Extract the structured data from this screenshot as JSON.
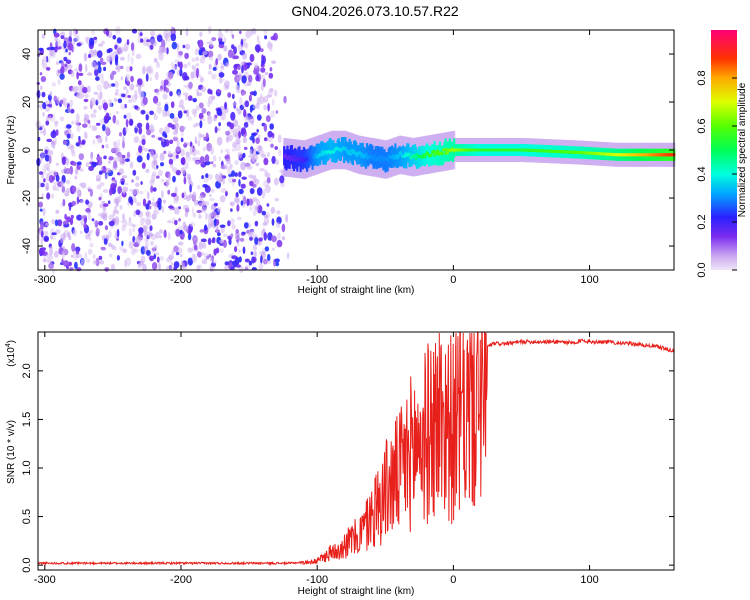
{
  "title": "GN04.2026.073.10.57.R22",
  "chart_data": [
    {
      "type": "heatmap",
      "xlabel": "Height of straight line (km)",
      "ylabel": "Frequency (Hz)",
      "xlim": [
        -305,
        162
      ],
      "ylim": [
        -50,
        50
      ],
      "xticks": [
        -300,
        -200,
        -100,
        0,
        100
      ],
      "xtick_labels": [
        "-300",
        "-200",
        "-100",
        "0",
        "100"
      ],
      "yticks": [
        -40,
        -20,
        0,
        20,
        40
      ],
      "ytick_labels": [
        "-40",
        "-20",
        "0",
        "20",
        "40"
      ],
      "colorbar": {
        "label": "Normalized spectral amplitude",
        "range": [
          0,
          1
        ],
        "ticks": [
          0.0,
          0.2,
          0.4,
          0.6,
          0.8
        ],
        "tick_labels": [
          "0.0",
          "0.2",
          "0.4",
          "0.6",
          "0.8"
        ]
      },
      "ridge": {
        "x": [
          -125,
          -110,
          -100,
          -90,
          -80,
          -70,
          -60,
          -50,
          -40,
          -30,
          -20,
          -10,
          0,
          20,
          50,
          90,
          120,
          162
        ],
        "freq": [
          -3,
          -4,
          -2,
          0,
          0,
          -2,
          -3,
          -4,
          -2,
          -3,
          -2,
          -1,
          0,
          0,
          0,
          -1,
          -2,
          -2
        ],
        "amplitude": [
          0.15,
          0.2,
          0.35,
          0.4,
          0.35,
          0.35,
          0.3,
          0.3,
          0.35,
          0.45,
          0.55,
          0.6,
          0.65,
          0.55,
          0.55,
          0.6,
          0.7,
          0.9
        ]
      },
      "noise_region": {
        "x": [
          -305,
          -120
        ],
        "amplitude_range": [
          0.0,
          0.25
        ]
      },
      "grid": false
    },
    {
      "type": "line",
      "xlabel": "Height of straight line (km)",
      "ylabel": "SNR (10 * v/v)",
      "y_multiplier": "(x10",
      "y_multiplier_exp": "4",
      "y_multiplier_close": ")",
      "xlim": [
        -305,
        162
      ],
      "ylim": [
        -0.05,
        2.4
      ],
      "xticks": [
        -300,
        -200,
        -100,
        0,
        100
      ],
      "xtick_labels": [
        "-300",
        "-200",
        "-100",
        "0",
        "100"
      ],
      "yticks": [
        0.0,
        0.5,
        1.0,
        1.5,
        2.0
      ],
      "ytick_labels": [
        "0.0",
        "0.5",
        "1.0",
        "1.5",
        "2.0"
      ],
      "series": [
        {
          "color": "#e8201c",
          "x": [
            -305,
            -250,
            -200,
            -150,
            -120,
            -110,
            -100,
            -95,
            -90,
            -85,
            -80,
            -75,
            -70,
            -65,
            -60,
            -55,
            -50,
            -45,
            -40,
            -35,
            -30,
            -25,
            -20,
            -15,
            -10,
            -5,
            0,
            5,
            10,
            15,
            20,
            25,
            30,
            40,
            50,
            60,
            80,
            90,
            95,
            100,
            110,
            130,
            150,
            162
          ],
          "y": [
            0.02,
            0.02,
            0.02,
            0.02,
            0.02,
            0.03,
            0.05,
            0.1,
            0.15,
            0.2,
            0.25,
            0.3,
            0.35,
            0.45,
            0.6,
            0.75,
            0.9,
            1.0,
            1.1,
            1.25,
            1.4,
            1.5,
            1.55,
            1.7,
            1.8,
            1.75,
            1.6,
            1.8,
            1.9,
            2.05,
            2.15,
            2.25,
            2.28,
            2.28,
            2.3,
            2.3,
            2.3,
            2.28,
            2.32,
            2.3,
            2.3,
            2.28,
            2.25,
            2.2
          ]
        }
      ],
      "grid": false
    }
  ]
}
